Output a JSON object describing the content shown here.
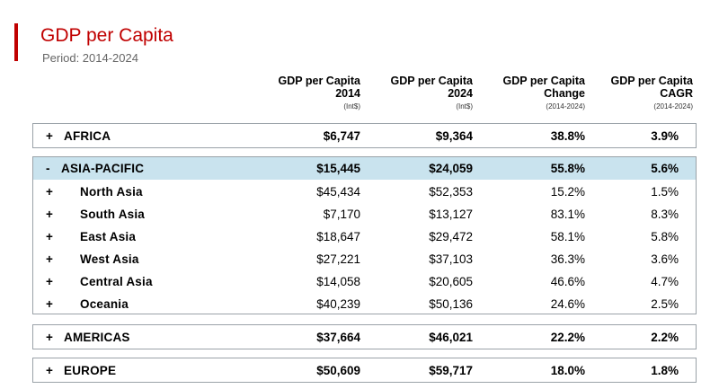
{
  "header": {
    "title": "GDP per Capita",
    "subtitle": "Period: 2014-2024"
  },
  "columns": [
    {
      "line1": "GDP per Capita",
      "line2": "2014",
      "unit": "(Int$)"
    },
    {
      "line1": "GDP per Capita",
      "line2": "2024",
      "unit": "(Int$)"
    },
    {
      "line1": "GDP per Capita",
      "line2": "Change",
      "unit": "(2014-2024)"
    },
    {
      "line1": "GDP per Capita",
      "line2": "CAGR",
      "unit": "(2014-2024)"
    }
  ],
  "regions": {
    "africa": {
      "toggle": "+",
      "name": "AFRICA",
      "v2014": "$6,747",
      "v2024": "$9,364",
      "change": "38.8%",
      "cagr": "3.9%"
    },
    "asia": {
      "toggle": "-",
      "name": "ASIA-PACIFIC",
      "v2014": "$15,445",
      "v2024": "$24,059",
      "change": "55.8%",
      "cagr": "5.6%",
      "children": [
        {
          "toggle": "+",
          "name": "North Asia",
          "v2014": "$45,434",
          "v2024": "$52,353",
          "change": "15.2%",
          "cagr": "1.5%"
        },
        {
          "toggle": "+",
          "name": "South Asia",
          "v2014": "$7,170",
          "v2024": "$13,127",
          "change": "83.1%",
          "cagr": "8.3%"
        },
        {
          "toggle": "+",
          "name": "East Asia",
          "v2014": "$18,647",
          "v2024": "$29,472",
          "change": "58.1%",
          "cagr": "5.8%"
        },
        {
          "toggle": "+",
          "name": "West Asia",
          "v2014": "$27,221",
          "v2024": "$37,103",
          "change": "36.3%",
          "cagr": "3.6%"
        },
        {
          "toggle": "+",
          "name": "Central Asia",
          "v2014": "$14,058",
          "v2024": "$20,605",
          "change": "46.6%",
          "cagr": "4.7%"
        },
        {
          "toggle": "+",
          "name": "Oceania",
          "v2014": "$40,239",
          "v2024": "$50,136",
          "change": "24.6%",
          "cagr": "2.5%"
        }
      ]
    },
    "americas": {
      "toggle": "+",
      "name": "AMERICAS",
      "v2014": "$37,664",
      "v2024": "$46,021",
      "change": "22.2%",
      "cagr": "2.2%"
    },
    "europe": {
      "toggle": "+",
      "name": "EUROPE",
      "v2014": "$50,609",
      "v2024": "$59,717",
      "change": "18.0%",
      "cagr": "1.8%"
    }
  },
  "colors": {
    "accent": "#c00000",
    "highlight_row": "#c9e3ee",
    "border": "#9aa2a8"
  }
}
